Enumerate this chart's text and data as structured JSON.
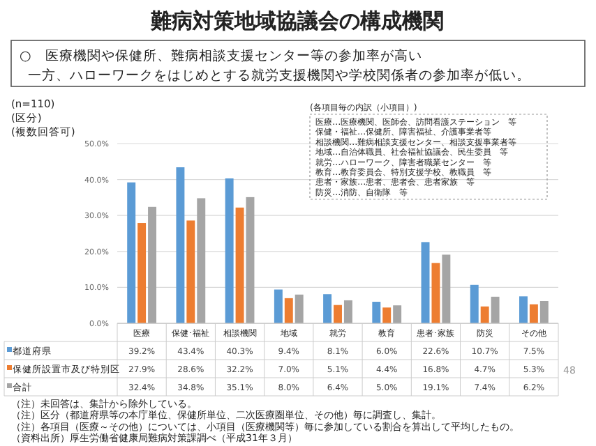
{
  "chart_data": {
    "type": "bar",
    "title": "難病対策地域協議会の構成機関",
    "subtitle": "○　医療機関や保健所、難病相談支援センター等の参加率が高い",
    "annotations": [
      "一方、ハローワークをはじめとする就労支援機関や学校関係者の参加率が低い。",
      "(n=110)",
      "(区分)",
      "(複数回答可)",
      "(各項目毎の内訳（小項目）)",
      "医療…医療機関、医師会、訪問看護ステーション　等",
      "保健・福祉…保健所、障害福祉、介護事業者等",
      "相談機関…難病相談支援センター、相談支援事業者等",
      "地域…自治体職員、社会福祉協議会、民生委員　等",
      "就労…ハローワーク、障害者職業センター　等",
      "教育…教育委員会、特別支援学校、教職員　等",
      "患者・家族…患者、患者会、患者家族　等",
      "防災…消防、自衛隊　等",
      "（注）未回答は、集計から除外している。",
      "（注）区分（都道府県等の本庁単位、保健所単位、二次医療圏単位、その他）毎に調査し、集計。",
      "（注）各項目（医療～その他）については、小項目（医療機関等）毎に参加している割合を算出して平均したもの。",
      "（資料出所）厚生労働省健康局難病対策課調べ（平成31年３月）",
      "48"
    ],
    "categories": [
      "医療",
      "保健･福祉",
      "相談機関",
      "地域",
      "就労",
      "教育",
      "患者･家族",
      "防災",
      "その他"
    ],
    "series": [
      {
        "name": "都道府県",
        "color": "#5b9bd5",
        "values": [
          39.2,
          43.4,
          40.3,
          9.4,
          8.1,
          6.0,
          22.6,
          10.7,
          7.5
        ],
        "value_labels": [
          "39.2%",
          "43.4%",
          "40.3%",
          "9.4%",
          "8.1%",
          "6.0%",
          "22.6%",
          "10.7%",
          "7.5%"
        ]
      },
      {
        "name": "保健所設置市及び特別区",
        "color": "#ed7d31",
        "values": [
          27.9,
          28.6,
          32.2,
          7.0,
          5.1,
          4.4,
          16.8,
          4.7,
          5.3
        ],
        "value_labels": [
          "27.9%",
          "28.6%",
          "32.2%",
          "7.0%",
          "5.1%",
          "4.4%",
          "16.8%",
          "4.7%",
          "5.3%"
        ]
      },
      {
        "name": "合計",
        "color": "#a5a5a5",
        "values": [
          32.4,
          34.8,
          35.1,
          8.0,
          6.4,
          5.0,
          19.1,
          7.4,
          6.2
        ],
        "value_labels": [
          "32.4%",
          "34.8%",
          "35.1%",
          "8.0%",
          "6.4%",
          "5.0%",
          "19.1%",
          "7.4%",
          "6.2%"
        ]
      }
    ],
    "ylim": [
      0,
      50
    ],
    "yticks": [
      {
        "value": 0,
        "label": "0.0%"
      },
      {
        "value": 10,
        "label": "10.0%"
      },
      {
        "value": 20,
        "label": "20.0%"
      },
      {
        "value": 30,
        "label": "30.0%"
      },
      {
        "value": 40,
        "label": "40.0%"
      },
      {
        "value": 50,
        "label": "50.0%"
      }
    ],
    "grid": "y",
    "legend": "bottom"
  }
}
